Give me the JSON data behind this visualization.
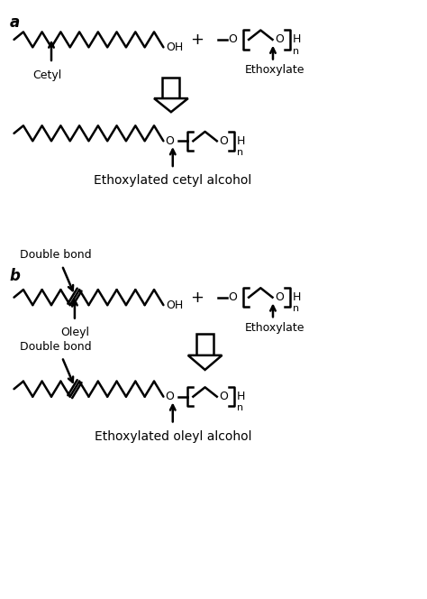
{
  "figsize": [
    4.74,
    6.64
  ],
  "dpi": 100,
  "bg_color": "#ffffff",
  "line_color": "#000000",
  "line_width": 1.8,
  "font_size_label": 10,
  "font_size_panel": 12,
  "panel_a_label": "a",
  "panel_b_label": "b",
  "cetyl_label": "Cetyl",
  "oleyl_label": "Oleyl",
  "ethoxylate_label": "Ethoxylate",
  "double_bond_label": "Double bond",
  "ethox_cetyl_label": "Ethoxylated cetyl alcohol",
  "ethox_oleyl_label": "Ethoxylated oleyl alcohol",
  "plus_sign": "+",
  "oh_label": "OH",
  "o_label": "O",
  "h_label": "H",
  "n_label": "n"
}
